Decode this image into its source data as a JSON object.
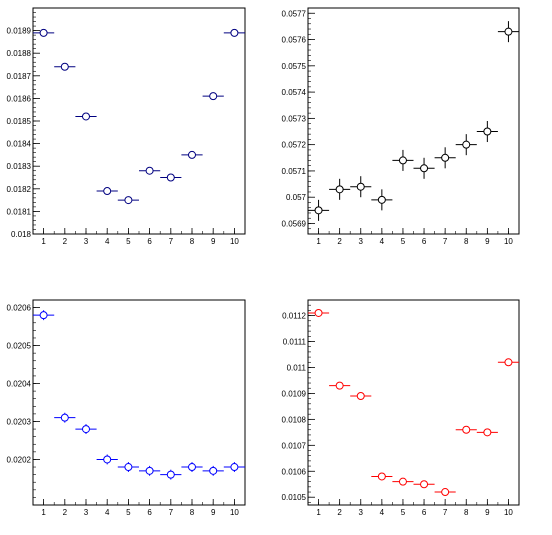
{
  "chart_data": [
    {
      "type": "scatter",
      "color": "#000000",
      "marker_edge": "#000080",
      "marker_edge_name": "navy",
      "error_bar_color": "#000080",
      "x": [
        1,
        2,
        3,
        4,
        5,
        6,
        7,
        8,
        9,
        10
      ],
      "y": [
        0.01889,
        0.01874,
        0.01852,
        0.01819,
        0.01815,
        0.01828,
        0.01825,
        0.01835,
        0.01861,
        0.01889
      ],
      "y_err": [
        0,
        0,
        0,
        0,
        0,
        0,
        0,
        0,
        0,
        0
      ],
      "x_err": 0.5,
      "xlim": [
        0.5,
        10.5
      ],
      "ylim": [
        0.018,
        0.019
      ],
      "x_ticks": [
        "1",
        "2",
        "3",
        "4",
        "5",
        "6",
        "7",
        "8",
        "9",
        "10"
      ],
      "y_ticks": [
        {
          "v": 0.018,
          "t": "0.018"
        },
        {
          "v": 0.0181,
          "t": "0.0181"
        },
        {
          "v": 0.0182,
          "t": "0.0182"
        },
        {
          "v": 0.0183,
          "t": "0.0183"
        },
        {
          "v": 0.0184,
          "t": "0.0184"
        },
        {
          "v": 0.0185,
          "t": "0.0185"
        },
        {
          "v": 0.0186,
          "t": "0.0186"
        },
        {
          "v": 0.0187,
          "t": "0.0187"
        },
        {
          "v": 0.0188,
          "t": "0.0188"
        },
        {
          "v": 0.0189,
          "t": "0.0189"
        }
      ]
    },
    {
      "type": "scatter",
      "marker_edge": "#000000",
      "error_bar_color": "#000000",
      "x": [
        1,
        2,
        3,
        4,
        5,
        6,
        7,
        8,
        9,
        10
      ],
      "y": [
        0.05695,
        0.05703,
        0.05704,
        0.05699,
        0.05714,
        0.05711,
        0.05715,
        0.0572,
        0.05725,
        0.05763
      ],
      "y_err": [
        4e-05,
        4e-05,
        4e-05,
        4e-05,
        4e-05,
        4e-05,
        4e-05,
        4e-05,
        4e-05,
        4e-05
      ],
      "x_err": 0.5,
      "xlim": [
        0.5,
        10.5
      ],
      "ylim": [
        0.05686,
        0.05772
      ],
      "x_ticks": [
        "1",
        "2",
        "3",
        "4",
        "5",
        "6",
        "7",
        "8",
        "9",
        "10"
      ],
      "y_ticks": [
        {
          "v": 0.0569,
          "t": "0.0569"
        },
        {
          "v": 0.057,
          "t": "0.057"
        },
        {
          "v": 0.0571,
          "t": "0.0571"
        },
        {
          "v": 0.0572,
          "t": "0.0572"
        },
        {
          "v": 0.0573,
          "t": "0.0573"
        },
        {
          "v": 0.0574,
          "t": "0.0574"
        },
        {
          "v": 0.0575,
          "t": "0.0575"
        },
        {
          "v": 0.0576,
          "t": "0.0576"
        },
        {
          "v": 0.0577,
          "t": "0.0577"
        }
      ]
    },
    {
      "type": "scatter",
      "marker_edge": "#0000ff",
      "error_bar_color": "#0000ff",
      "x": [
        1,
        2,
        3,
        4,
        5,
        6,
        7,
        8,
        9,
        10
      ],
      "y": [
        0.02058,
        0.02031,
        0.02028,
        0.0202,
        0.02018,
        0.02017,
        0.02016,
        0.02018,
        0.02017,
        0.02018
      ],
      "y_err": [
        1.3e-05,
        1.3e-05,
        1.3e-05,
        1.3e-05,
        1.3e-05,
        1.3e-05,
        1.3e-05,
        1.3e-05,
        1.3e-05,
        1.3e-05
      ],
      "x_err": 0.5,
      "xlim": [
        0.5,
        10.5
      ],
      "ylim": [
        0.02008,
        0.02062
      ],
      "x_ticks": [
        "1",
        "2",
        "3",
        "4",
        "5",
        "6",
        "7",
        "8",
        "9",
        "10"
      ],
      "y_ticks": [
        {
          "v": 0.0202,
          "t": "0.0202"
        },
        {
          "v": 0.0203,
          "t": "0.0203"
        },
        {
          "v": 0.0204,
          "t": "0.0204"
        },
        {
          "v": 0.0205,
          "t": "0.0205"
        },
        {
          "v": 0.0206,
          "t": "0.0206"
        }
      ]
    },
    {
      "type": "scatter",
      "marker_edge": "#ff0000",
      "error_bar_color": "#ff0000",
      "x": [
        1,
        2,
        3,
        4,
        5,
        6,
        7,
        8,
        9,
        10
      ],
      "y": [
        0.01121,
        0.01093,
        0.01089,
        0.01058,
        0.01056,
        0.01055,
        0.01052,
        0.01076,
        0.01075,
        0.01102
      ],
      "y_err": [
        0,
        0,
        0,
        0,
        0,
        0,
        0,
        0,
        0,
        0
      ],
      "x_err": 0.5,
      "xlim": [
        0.5,
        10.5
      ],
      "ylim": [
        0.01047,
        0.01126
      ],
      "x_ticks": [
        "1",
        "2",
        "3",
        "4",
        "5",
        "6",
        "7",
        "8",
        "9",
        "10"
      ],
      "y_ticks": [
        {
          "v": 0.0105,
          "t": "0.0105"
        },
        {
          "v": 0.0106,
          "t": "0.0106"
        },
        {
          "v": 0.0107,
          "t": "0.0107"
        },
        {
          "v": 0.0108,
          "t": "0.0108"
        },
        {
          "v": 0.0109,
          "t": "0.0109"
        },
        {
          "v": 0.011,
          "t": "0.011"
        },
        {
          "v": 0.0111,
          "t": "0.0111"
        },
        {
          "v": 0.0112,
          "t": "0.0112"
        }
      ]
    }
  ]
}
